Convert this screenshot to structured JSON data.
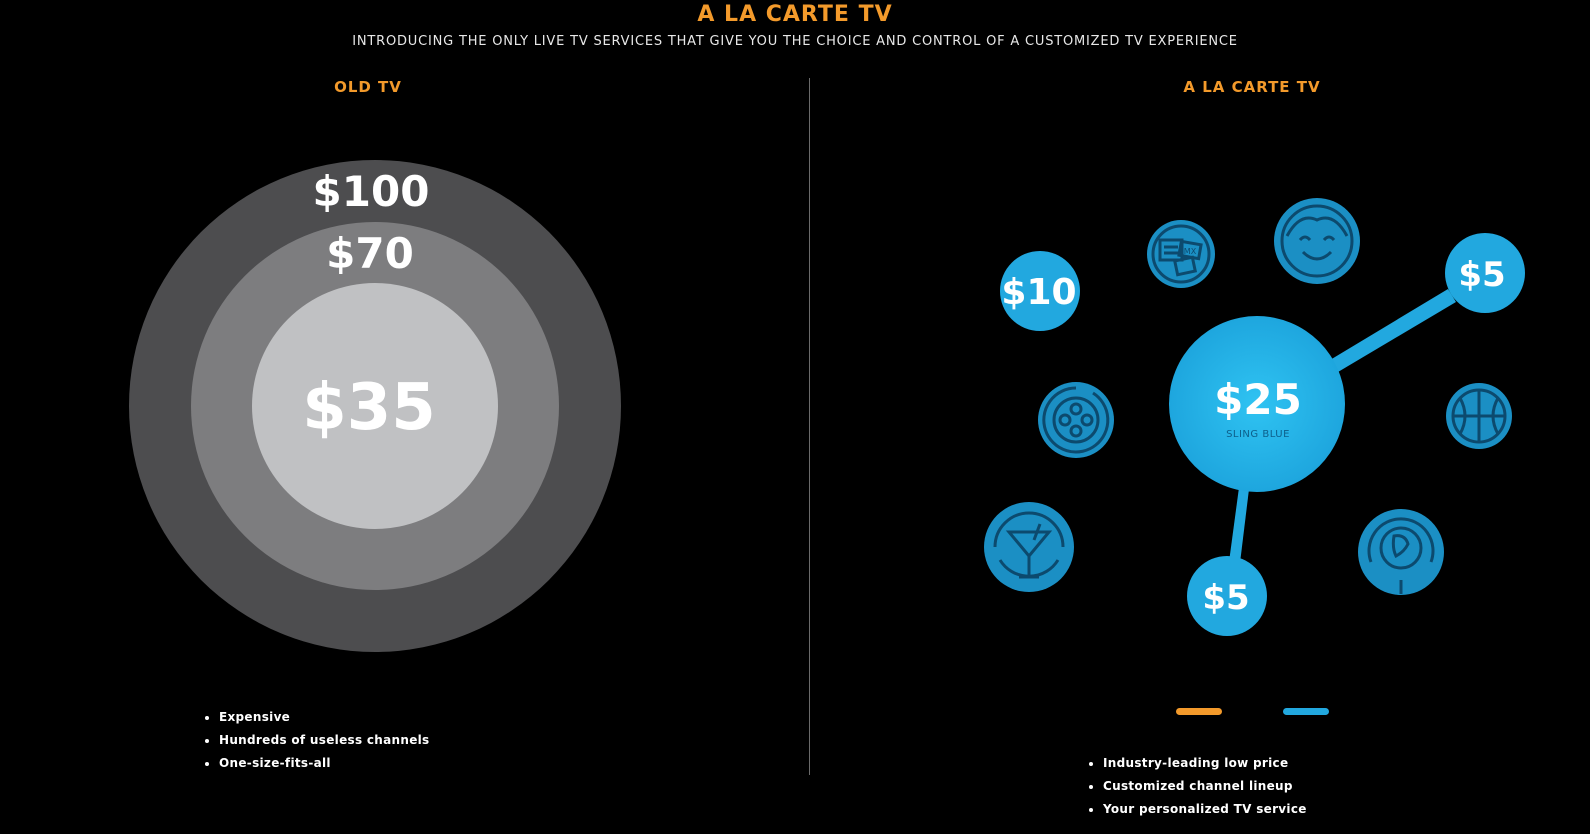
{
  "header": {
    "title": "A LA CARTE TV",
    "subtitle": "INTRODUCING THE ONLY LIVE TV SERVICES THAT GIVE YOU THE CHOICE AND CONTROL OF A CUSTOMIZED TV EXPERIENCE"
  },
  "old_tv": {
    "heading": "OLD TV",
    "rings": [
      {
        "label": "$100",
        "color": "#4d4d4f"
      },
      {
        "label": "$70",
        "color": "#7d7d7f"
      },
      {
        "label": "$35",
        "color": "#c0c1c3"
      }
    ],
    "bullets": [
      "Expensive",
      "Hundreds of useless channels",
      "One-size-fits-all"
    ]
  },
  "a_la_carte": {
    "heading": "A LA CARTE TV",
    "center": {
      "price": "$25",
      "name": "SLING BLUE",
      "color": "#22a8df"
    },
    "price_bubbles": [
      {
        "label": "$10",
        "connected": false
      },
      {
        "label": "$5",
        "connected": true
      },
      {
        "label": "$5",
        "connected": true
      }
    ],
    "icon_bubbles": [
      {
        "name": "news-channel-icon",
        "badge": "MX"
      },
      {
        "name": "kids-face-icon"
      },
      {
        "name": "film-reel-icon"
      },
      {
        "name": "basketball-icon"
      },
      {
        "name": "cocktail-icon"
      },
      {
        "name": "world-globe-icon"
      }
    ],
    "legend_colors": [
      "#f39a2b",
      "#22a8df"
    ],
    "bullets": [
      "Industry-leading low price",
      "Customized channel lineup",
      "Your personalized TV service"
    ]
  },
  "colors": {
    "accent_orange": "#f39a2b",
    "accent_blue": "#22a8df",
    "icon_blue": "#1b8fc4",
    "icon_stroke": "#0c4a6e"
  }
}
